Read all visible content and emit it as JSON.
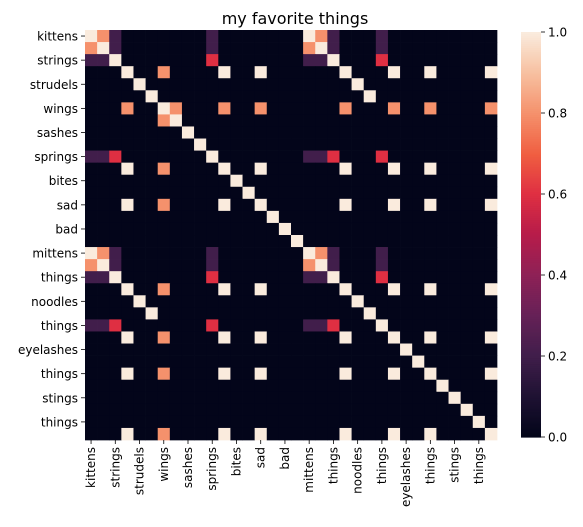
{
  "chart_data": {
    "type": "heatmap",
    "title": "my favorite things",
    "xlabel": "",
    "ylabel": "",
    "labels": [
      "kittens",
      "kittens",
      "strings",
      "strings",
      "strudels",
      "strudels",
      "wings",
      "wings",
      "sashes",
      "sashes",
      "springs",
      "springs",
      "bites",
      "bites",
      "sad",
      "sad",
      "bad",
      "bad",
      "mittens",
      "mittens",
      "things",
      "things",
      "noodles",
      "noodles",
      "things",
      "things",
      "eyelashes",
      "eyelashes",
      "things",
      "things",
      "stings",
      "stings",
      "things",
      "things"
    ],
    "x_tick_labels": [
      "kittens",
      "strings",
      "strudels",
      "wings",
      "sashes",
      "springs",
      "bites",
      "sad",
      "bad",
      "mittens",
      "things",
      "noodles",
      "things",
      "eyelashes",
      "things",
      "stings",
      "things"
    ],
    "y_tick_labels": [
      "kittens",
      "strings",
      "strudels",
      "wings",
      "sashes",
      "springs",
      "bites",
      "sad",
      "bad",
      "mittens",
      "things",
      "noodles",
      "things",
      "eyelashes",
      "things",
      "stings",
      "things"
    ],
    "colorbar": {
      "min": 0.0,
      "max": 1.0,
      "ticks": [
        "0.0",
        "0.2",
        "0.4",
        "0.6",
        "0.8",
        "1.0"
      ],
      "colormap": "rocket"
    },
    "matrix": [
      [
        1,
        0.8,
        0.2,
        0,
        0,
        0,
        0,
        0,
        0,
        0,
        0.2,
        0,
        0,
        0,
        0,
        0,
        0,
        0,
        1,
        0.8,
        0.2,
        0,
        0,
        0,
        0.2,
        0,
        0,
        0,
        0,
        0,
        0,
        0,
        0,
        0
      ],
      [
        0.8,
        1,
        0.2,
        0,
        0,
        0,
        0,
        0,
        0,
        0,
        0.2,
        0,
        0,
        0,
        0,
        0,
        0,
        0,
        0.8,
        1,
        0.2,
        0,
        0,
        0,
        0.2,
        0,
        0,
        0,
        0,
        0,
        0,
        0,
        0,
        0
      ],
      [
        0.2,
        0.2,
        1,
        0,
        0,
        0,
        0,
        0,
        0,
        0,
        0.6,
        0,
        0,
        0,
        0,
        0,
        0,
        0,
        0.2,
        0.2,
        1,
        0,
        0,
        0,
        0.6,
        0,
        0,
        0,
        0,
        0,
        0,
        0,
        0,
        0
      ],
      [
        0,
        0,
        0,
        1,
        0,
        0,
        0.8,
        0,
        0,
        0,
        0,
        1,
        0,
        0,
        1,
        0,
        0,
        0,
        0,
        0,
        0,
        1,
        0,
        0,
        0,
        1,
        0,
        0,
        1,
        0,
        0,
        0,
        0,
        1
      ],
      [
        0,
        0,
        0,
        0,
        1,
        0,
        0,
        0,
        0,
        0,
        0,
        0,
        0,
        0,
        0,
        0,
        0,
        0,
        0,
        0,
        0,
        0,
        1,
        0,
        0,
        0,
        0,
        0,
        0,
        0,
        0,
        0,
        0,
        0
      ],
      [
        0,
        0,
        0,
        0,
        0,
        1,
        0,
        0,
        0,
        0,
        0,
        0,
        0,
        0,
        0,
        0,
        0,
        0,
        0,
        0,
        0,
        0,
        0,
        1,
        0,
        0,
        0,
        0,
        0,
        0,
        0,
        0,
        0,
        0
      ],
      [
        0,
        0,
        0,
        0.8,
        0,
        0,
        1,
        0.8,
        0,
        0,
        0,
        0.8,
        0,
        0,
        0.8,
        0,
        0,
        0,
        0,
        0,
        0,
        0.8,
        0,
        0,
        0,
        0.8,
        0,
        0,
        0.8,
        0,
        0,
        0,
        0,
        0.8
      ],
      [
        0,
        0,
        0,
        0,
        0,
        0,
        0.8,
        1,
        0,
        0,
        0,
        0,
        0,
        0,
        0,
        0,
        0,
        0,
        0,
        0,
        0,
        0,
        0,
        0,
        0,
        0,
        0,
        0,
        0,
        0,
        0,
        0,
        0,
        0
      ],
      [
        0,
        0,
        0,
        0,
        0,
        0,
        0,
        0,
        1,
        0,
        0,
        0,
        0,
        0,
        0,
        0,
        0,
        0,
        0,
        0,
        0,
        0,
        0,
        0,
        0,
        0,
        0,
        0,
        0,
        0,
        0,
        0,
        0,
        0
      ],
      [
        0,
        0,
        0,
        0,
        0,
        0,
        0,
        0,
        0,
        1,
        0,
        0,
        0,
        0,
        0,
        0,
        0,
        0,
        0,
        0,
        0,
        0,
        0,
        0,
        0,
        0,
        0,
        0,
        0,
        0,
        0,
        0,
        0,
        0
      ],
      [
        0.2,
        0.2,
        0.6,
        0,
        0,
        0,
        0,
        0,
        0,
        0,
        1,
        0,
        0,
        0,
        0,
        0,
        0,
        0,
        0.2,
        0.2,
        0.6,
        0,
        0,
        0,
        0.6,
        0,
        0,
        0,
        0,
        0,
        0,
        0,
        0,
        0
      ],
      [
        0,
        0,
        0,
        1,
        0,
        0,
        0.8,
        0,
        0,
        0,
        0,
        1,
        0,
        0,
        1,
        0,
        0,
        0,
        0,
        0,
        0,
        1,
        0,
        0,
        0,
        1,
        0,
        0,
        1,
        0,
        0,
        0,
        0,
        1
      ],
      [
        0,
        0,
        0,
        0,
        0,
        0,
        0,
        0,
        0,
        0,
        0,
        0,
        1,
        0,
        0,
        0,
        0,
        0,
        0,
        0,
        0,
        0,
        0,
        0,
        0,
        0,
        0,
        0,
        0,
        0,
        0,
        0,
        0,
        0
      ],
      [
        0,
        0,
        0,
        0,
        0,
        0,
        0,
        0,
        0,
        0,
        0,
        0,
        0,
        1,
        0,
        0,
        0,
        0,
        0,
        0,
        0,
        0,
        0,
        0,
        0,
        0,
        0,
        0,
        0,
        0,
        0,
        0,
        0,
        0
      ],
      [
        0,
        0,
        0,
        1,
        0,
        0,
        0.8,
        0,
        0,
        0,
        0,
        1,
        0,
        0,
        1,
        0,
        0,
        0,
        0,
        0,
        0,
        1,
        0,
        0,
        0,
        1,
        0,
        0,
        1,
        0,
        0,
        0,
        0,
        1
      ],
      [
        0,
        0,
        0,
        0,
        0,
        0,
        0,
        0,
        0,
        0,
        0,
        0,
        0,
        0,
        0,
        1,
        0,
        0,
        0,
        0,
        0,
        0,
        0,
        0,
        0,
        0,
        0,
        0,
        0,
        0,
        0,
        0,
        0,
        0
      ],
      [
        0,
        0,
        0,
        0,
        0,
        0,
        0,
        0,
        0,
        0,
        0,
        0,
        0,
        0,
        0,
        0,
        1,
        0,
        0,
        0,
        0,
        0,
        0,
        0,
        0,
        0,
        0,
        0,
        0,
        0,
        0,
        0,
        0,
        0
      ],
      [
        0,
        0,
        0,
        0,
        0,
        0,
        0,
        0,
        0,
        0,
        0,
        0,
        0,
        0,
        0,
        0,
        0,
        1,
        0,
        0,
        0,
        0,
        0,
        0,
        0,
        0,
        0,
        0,
        0,
        0,
        0,
        0,
        0,
        0
      ],
      [
        1,
        0.8,
        0.2,
        0,
        0,
        0,
        0,
        0,
        0,
        0,
        0.2,
        0,
        0,
        0,
        0,
        0,
        0,
        0,
        1,
        0.8,
        0.2,
        0,
        0,
        0,
        0.2,
        0,
        0,
        0,
        0,
        0,
        0,
        0,
        0,
        0
      ],
      [
        0.8,
        1,
        0.2,
        0,
        0,
        0,
        0,
        0,
        0,
        0,
        0.2,
        0,
        0,
        0,
        0,
        0,
        0,
        0,
        0.8,
        1,
        0.2,
        0,
        0,
        0,
        0.2,
        0,
        0,
        0,
        0,
        0,
        0,
        0,
        0,
        0
      ],
      [
        0.2,
        0.2,
        1,
        0,
        0,
        0,
        0,
        0,
        0,
        0,
        0.6,
        0,
        0,
        0,
        0,
        0,
        0,
        0,
        0.2,
        0.2,
        1,
        0,
        0,
        0,
        0.6,
        0,
        0,
        0,
        0,
        0,
        0,
        0,
        0,
        0
      ],
      [
        0,
        0,
        0,
        1,
        0,
        0,
        0.8,
        0,
        0,
        0,
        0,
        1,
        0,
        0,
        1,
        0,
        0,
        0,
        0,
        0,
        0,
        1,
        0,
        0,
        0,
        1,
        0,
        0,
        1,
        0,
        0,
        0,
        0,
        1
      ],
      [
        0,
        0,
        0,
        0,
        1,
        0,
        0,
        0,
        0,
        0,
        0,
        0,
        0,
        0,
        0,
        0,
        0,
        0,
        0,
        0,
        0,
        0,
        1,
        0,
        0,
        0,
        0,
        0,
        0,
        0,
        0,
        0,
        0,
        0
      ],
      [
        0,
        0,
        0,
        0,
        0,
        1,
        0,
        0,
        0,
        0,
        0,
        0,
        0,
        0,
        0,
        0,
        0,
        0,
        0,
        0,
        0,
        0,
        0,
        1,
        0,
        0,
        0,
        0,
        0,
        0,
        0,
        0,
        0,
        0
      ],
      [
        0.2,
        0.2,
        0.6,
        0,
        0,
        0,
        0,
        0,
        0,
        0,
        0.6,
        0,
        0,
        0,
        0,
        0,
        0,
        0,
        0.2,
        0.2,
        0.6,
        0,
        0,
        0,
        1,
        0,
        0,
        0,
        0,
        0,
        0,
        0,
        0,
        0
      ],
      [
        0,
        0,
        0,
        1,
        0,
        0,
        0.8,
        0,
        0,
        0,
        0,
        1,
        0,
        0,
        1,
        0,
        0,
        0,
        0,
        0,
        0,
        1,
        0,
        0,
        0,
        1,
        0,
        0,
        1,
        0,
        0,
        0,
        0,
        1
      ],
      [
        0,
        0,
        0,
        0,
        0,
        0,
        0,
        0,
        0,
        0,
        0,
        0,
        0,
        0,
        0,
        0,
        0,
        0,
        0,
        0,
        0,
        0,
        0,
        0,
        0,
        0,
        1,
        0,
        0,
        0,
        0,
        0,
        0,
        0
      ],
      [
        0,
        0,
        0,
        0,
        0,
        0,
        0,
        0,
        0,
        0,
        0,
        0,
        0,
        0,
        0,
        0,
        0,
        0,
        0,
        0,
        0,
        0,
        0,
        0,
        0,
        0,
        0,
        1,
        0,
        0,
        0,
        0,
        0,
        0
      ],
      [
        0,
        0,
        0,
        1,
        0,
        0,
        0.8,
        0,
        0,
        0,
        0,
        1,
        0,
        0,
        1,
        0,
        0,
        0,
        0,
        0,
        0,
        1,
        0,
        0,
        0,
        1,
        0,
        0,
        1,
        0,
        0,
        0,
        0,
        1
      ],
      [
        0,
        0,
        0,
        0,
        0,
        0,
        0,
        0,
        0,
        0,
        0,
        0,
        0,
        0,
        0,
        0,
        0,
        0,
        0,
        0,
        0,
        0,
        0,
        0,
        0,
        0,
        0,
        0,
        0,
        1,
        0,
        0,
        0,
        0
      ],
      [
        0,
        0,
        0,
        0,
        0,
        0,
        0,
        0,
        0,
        0,
        0,
        0,
        0,
        0,
        0,
        0,
        0,
        0,
        0,
        0,
        0,
        0,
        0,
        0,
        0,
        0,
        0,
        0,
        0,
        0,
        1,
        0,
        0,
        0
      ],
      [
        0,
        0,
        0,
        0,
        0,
        0,
        0,
        0,
        0,
        0,
        0,
        0,
        0,
        0,
        0,
        0,
        0,
        0,
        0,
        0,
        0,
        0,
        0,
        0,
        0,
        0,
        0,
        0,
        0,
        0,
        0,
        1,
        0,
        0
      ],
      [
        0,
        0,
        0,
        0,
        0,
        0,
        0,
        0,
        0,
        0,
        0,
        0,
        0,
        0,
        0,
        0,
        0,
        0,
        0,
        0,
        0,
        0,
        0,
        0,
        0,
        0,
        0,
        0,
        0,
        0,
        0,
        0,
        1,
        0
      ],
      [
        0,
        0,
        0,
        1,
        0,
        0,
        0.8,
        0,
        0,
        0,
        0,
        1,
        0,
        0,
        1,
        0,
        0,
        0,
        0,
        0,
        0,
        1,
        0,
        0,
        0,
        1,
        0,
        0,
        1,
        0,
        0,
        0,
        0,
        1
      ]
    ]
  }
}
